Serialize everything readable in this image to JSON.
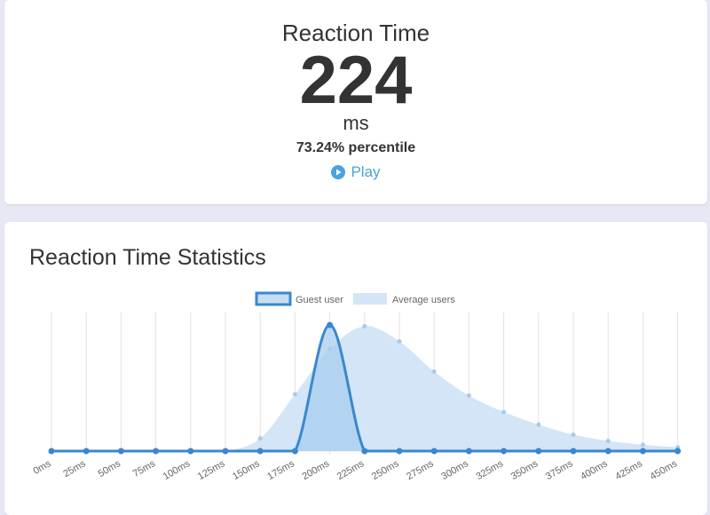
{
  "result": {
    "title": "Reaction Time",
    "value": "224",
    "unit": "ms",
    "percentile": "73.24% percentile",
    "play_label": "Play"
  },
  "stats": {
    "title": "Reaction Time Statistics"
  },
  "colors": {
    "guest_line": "#3a87cf",
    "guest_fill": "#a8cdee",
    "average_fill": "#d3e5f6",
    "average_point": "#a9cbe9",
    "play": "#4aa3df"
  },
  "chart_data": {
    "type": "area",
    "title": "",
    "xlabel": "",
    "ylabel": "",
    "ylim": [
      0,
      100
    ],
    "categories": [
      "0ms",
      "25ms",
      "50ms",
      "75ms",
      "100ms",
      "125ms",
      "150ms",
      "175ms",
      "200ms",
      "225ms",
      "250ms",
      "275ms",
      "300ms",
      "325ms",
      "350ms",
      "375ms",
      "400ms",
      "425ms",
      "450ms"
    ],
    "legend_position": "top-center",
    "series": [
      {
        "name": "Guest user",
        "values": [
          0,
          0,
          0,
          0,
          0,
          0,
          0,
          0,
          100,
          0,
          0,
          0,
          0,
          0,
          0,
          0,
          0,
          0,
          0
        ]
      },
      {
        "name": "Average users",
        "values": [
          0,
          0,
          0,
          0,
          0,
          0,
          10,
          45,
          81,
          99,
          87,
          63,
          44,
          31,
          21,
          13,
          8,
          5,
          3
        ]
      }
    ]
  }
}
